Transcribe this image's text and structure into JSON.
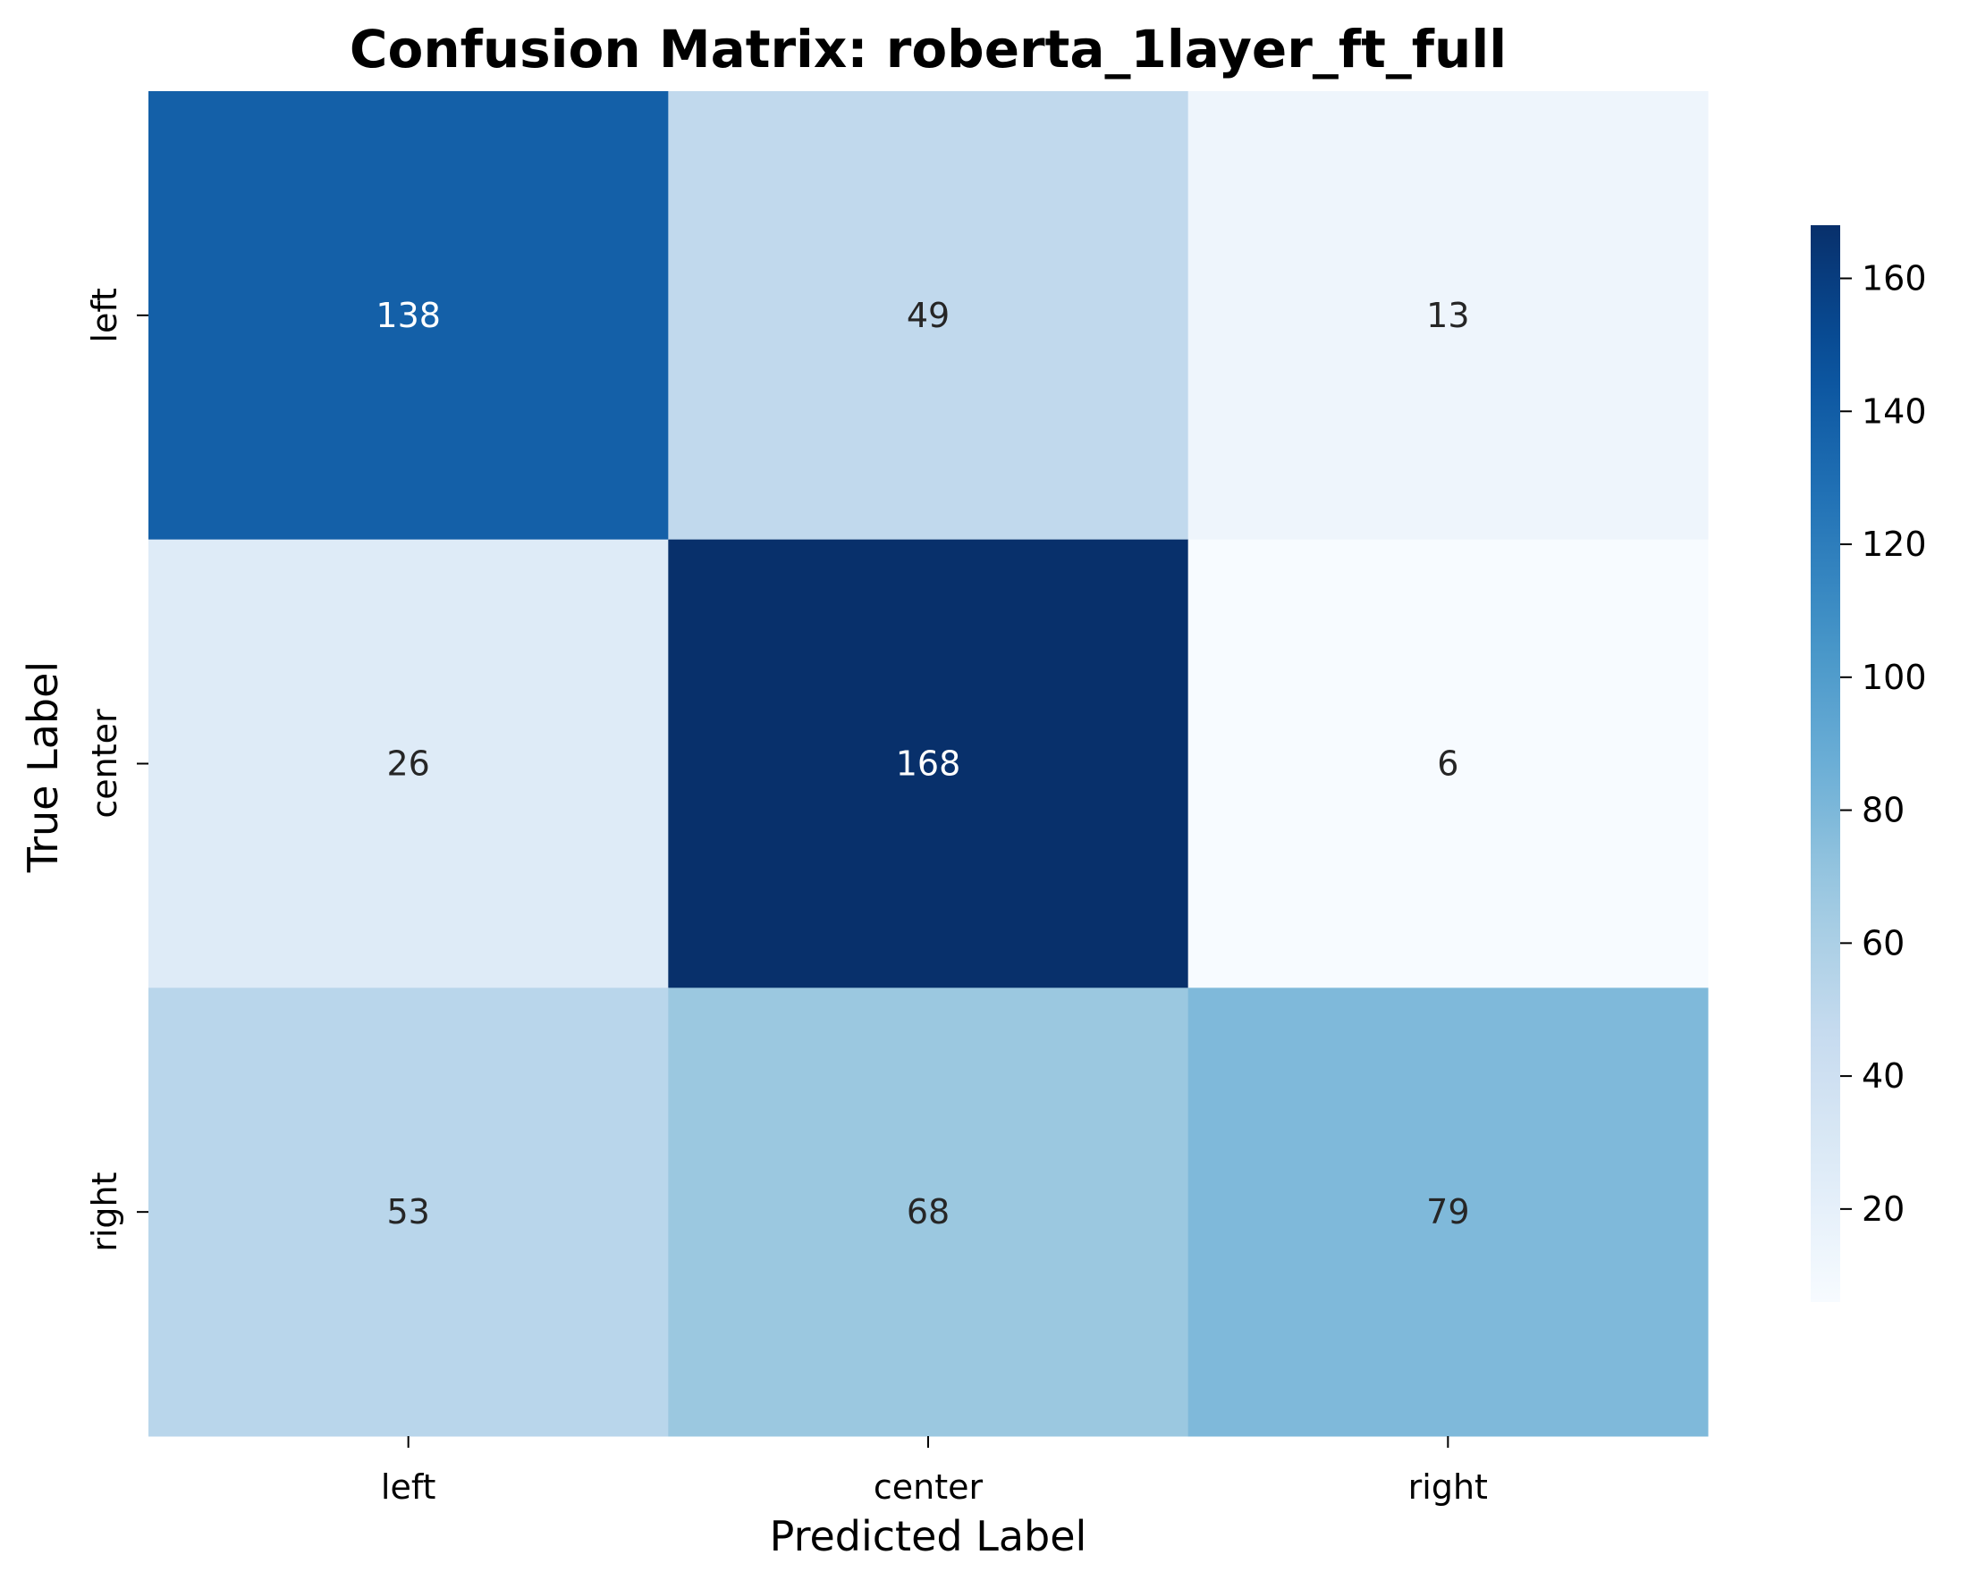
{
  "chart_data": {
    "type": "heatmap",
    "title": "Confusion Matrix: roberta_1layer_ft_full",
    "xlabel": "Predicted Label",
    "ylabel": "True Label",
    "x_categories": [
      "left",
      "center",
      "right"
    ],
    "y_categories": [
      "left",
      "center",
      "right"
    ],
    "values": [
      [
        138,
        49,
        13
      ],
      [
        26,
        168,
        6
      ],
      [
        53,
        68,
        79
      ]
    ],
    "colormap": "Blues",
    "color_range": [
      6,
      168
    ],
    "colorbar_ticks": [
      20,
      40,
      60,
      80,
      100,
      120,
      140,
      160
    ],
    "grid": false,
    "colors": {
      "low": "#f7fbff",
      "high": "#08306b",
      "dark_text": "#262626",
      "light_text": "#ffffff"
    }
  }
}
